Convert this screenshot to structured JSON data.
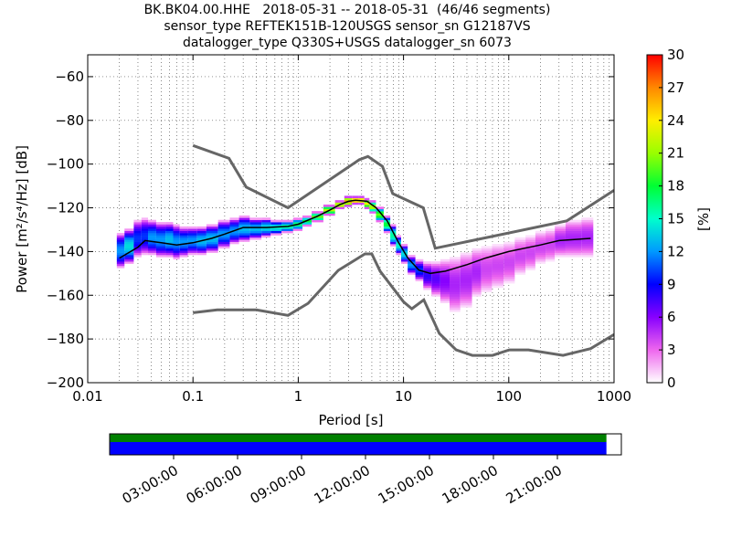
{
  "chart_data": {
    "type": "heatmap",
    "title_lines": [
      "BK.BK04.00.HHE   2018-05-31 -- 2018-05-31  (46/46 segments)",
      "sensor_type REFTEK151B-120USGS sensor_sn G12187VS",
      "datalogger_type Q330S+USGS datalogger_sn 6073"
    ],
    "xlabel": "Period [s]",
    "ylabel": "Power [m²/s⁴/Hz] [dB]",
    "xscale": "log",
    "xlim": [
      0.01,
      1000
    ],
    "ylim": [
      -200,
      -50
    ],
    "xticks": [
      {
        "value": 0.01,
        "label": "0.01"
      },
      {
        "value": 0.1,
        "label": "0.1"
      },
      {
        "value": 1,
        "label": "1"
      },
      {
        "value": 10,
        "label": "10"
      },
      {
        "value": 100,
        "label": "100"
      },
      {
        "value": 1000,
        "label": "1000"
      }
    ],
    "yticks": [
      -60,
      -80,
      -100,
      -120,
      -140,
      -160,
      -180,
      -200
    ],
    "grid": true,
    "colorbar": {
      "label": "[%]",
      "range": [
        0,
        30
      ],
      "ticks": [
        0,
        3,
        6,
        9,
        12,
        15,
        18,
        21,
        24,
        27,
        30
      ]
    },
    "noise_model_high": [
      [
        0.1,
        -91.5
      ],
      [
        0.22,
        -97.4
      ],
      [
        0.32,
        -110.5
      ],
      [
        0.8,
        -120
      ],
      [
        3.8,
        -98
      ],
      [
        4.6,
        -96.5
      ],
      [
        6.3,
        -101
      ],
      [
        7.9,
        -113.5
      ],
      [
        15.4,
        -120
      ],
      [
        20,
        -138.5
      ],
      [
        354.8,
        -126
      ],
      [
        1000,
        -112
      ]
    ],
    "noise_model_low": [
      [
        0.1,
        -168
      ],
      [
        0.17,
        -166.7
      ],
      [
        0.4,
        -166.7
      ],
      [
        0.8,
        -169.2
      ],
      [
        1.24,
        -163.7
      ],
      [
        2.4,
        -148.6
      ],
      [
        4.3,
        -141.1
      ],
      [
        5,
        -141.1
      ],
      [
        6,
        -149
      ],
      [
        10,
        -163
      ],
      [
        12,
        -166.2
      ],
      [
        15.6,
        -162.1
      ],
      [
        21.9,
        -177.5
      ],
      [
        31.6,
        -185
      ],
      [
        45,
        -187.5
      ],
      [
        70,
        -187.5
      ],
      [
        101,
        -185
      ],
      [
        154,
        -185
      ],
      [
        328,
        -187.5
      ],
      [
        600,
        -184.4
      ],
      [
        1000,
        -178
      ]
    ],
    "mode_line": [
      [
        0.02,
        -143
      ],
      [
        0.03,
        -138
      ],
      [
        0.035,
        -135
      ],
      [
        0.05,
        -136
      ],
      [
        0.07,
        -137
      ],
      [
        0.1,
        -136
      ],
      [
        0.15,
        -134
      ],
      [
        0.2,
        -132
      ],
      [
        0.3,
        -129
      ],
      [
        0.5,
        -129
      ],
      [
        0.8,
        -128.5
      ],
      [
        1,
        -127.5
      ],
      [
        1.5,
        -124
      ],
      [
        2,
        -121
      ],
      [
        2.5,
        -118.5
      ],
      [
        3,
        -117
      ],
      [
        3.5,
        -116.5
      ],
      [
        4.5,
        -117
      ],
      [
        5.5,
        -120
      ],
      [
        7,
        -126
      ],
      [
        9,
        -136
      ],
      [
        11,
        -143
      ],
      [
        14,
        -148.5
      ],
      [
        18,
        -150
      ],
      [
        25,
        -149
      ],
      [
        40,
        -146
      ],
      [
        60,
        -143
      ],
      [
        100,
        -140
      ],
      [
        200,
        -137
      ],
      [
        300,
        -135
      ],
      [
        600,
        -134
      ]
    ],
    "psd_density": [
      [
        0.02,
        -132,
        -147,
        12
      ],
      [
        0.025,
        -130,
        -145,
        14
      ],
      [
        0.03,
        -126,
        -142,
        10
      ],
      [
        0.035,
        -125,
        -141,
        10
      ],
      [
        0.04,
        -126,
        -141,
        12
      ],
      [
        0.05,
        -127,
        -142,
        12
      ],
      [
        0.06,
        -127,
        -142,
        13
      ],
      [
        0.07,
        -128,
        -143,
        12
      ],
      [
        0.08,
        -129,
        -142,
        12
      ],
      [
        0.1,
        -129,
        -141,
        12
      ],
      [
        0.12,
        -129,
        -141,
        13
      ],
      [
        0.15,
        -128,
        -140,
        13
      ],
      [
        0.2,
        -126,
        -138,
        12
      ],
      [
        0.25,
        -125,
        -136,
        12
      ],
      [
        0.3,
        -124,
        -135,
        13
      ],
      [
        0.4,
        -125,
        -134,
        13
      ],
      [
        0.5,
        -125,
        -133,
        14
      ],
      [
        0.6,
        -126,
        -132,
        15
      ],
      [
        0.8,
        -126,
        -131,
        16
      ],
      [
        1,
        -125,
        -130,
        17
      ],
      [
        1.2,
        -124,
        -128,
        18
      ],
      [
        1.5,
        -122,
        -126,
        20
      ],
      [
        2,
        -119,
        -123,
        22
      ],
      [
        2.5,
        -117,
        -120,
        24
      ],
      [
        3,
        -115,
        -119,
        27
      ],
      [
        3.5,
        -115,
        -118,
        27
      ],
      [
        4,
        -115,
        -118,
        26
      ],
      [
        4.5,
        -116,
        -120,
        24
      ],
      [
        5,
        -117,
        -122,
        22
      ],
      [
        6,
        -120,
        -126,
        20
      ],
      [
        7,
        -124,
        -131,
        18
      ],
      [
        8,
        -128,
        -137,
        16
      ],
      [
        9,
        -133,
        -141,
        15
      ],
      [
        10,
        -137,
        -145,
        14
      ],
      [
        12,
        -142,
        -150,
        12
      ],
      [
        14,
        -144,
        -153,
        10
      ],
      [
        17,
        -145,
        -157,
        8
      ],
      [
        20,
        -145,
        -160,
        7
      ],
      [
        25,
        -144,
        -163,
        6
      ],
      [
        30,
        -143,
        -167,
        5
      ],
      [
        40,
        -141,
        -165,
        5
      ],
      [
        50,
        -139,
        -160,
        5
      ],
      [
        60,
        -138,
        -158,
        4
      ],
      [
        80,
        -137,
        -156,
        4
      ],
      [
        100,
        -136,
        -154,
        4
      ],
      [
        130,
        -134,
        -150,
        4
      ],
      [
        160,
        -133,
        -148,
        4
      ],
      [
        200,
        -131,
        -145,
        4
      ],
      [
        250,
        -130,
        -144,
        4
      ],
      [
        300,
        -128,
        -142,
        5
      ],
      [
        400,
        -126,
        -142,
        5
      ],
      [
        600,
        -125,
        -142,
        5
      ]
    ]
  },
  "time_coverage": {
    "tick_labels": [
      "03:00:00",
      "06:00:00",
      "09:00:00",
      "12:00:00",
      "15:00:00",
      "18:00:00",
      "21:00:00"
    ],
    "tick_hours": [
      3,
      6,
      9,
      12,
      15,
      18,
      21
    ],
    "coverage_hours": [
      0,
      23.3
    ],
    "total_hours": 24,
    "colors": {
      "used": "#008000",
      "data": "#0000ff"
    }
  }
}
